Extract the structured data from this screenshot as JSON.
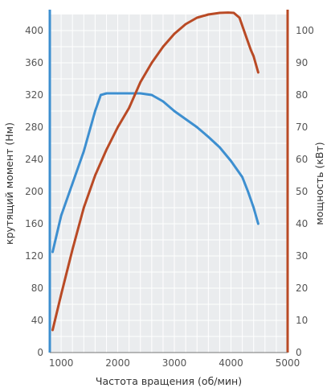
{
  "chart_data": {
    "type": "line",
    "xlabel": "Частота вращения (об/мин)",
    "xlim": [
      800,
      5000
    ],
    "x_ticks": [
      1000,
      2000,
      3000,
      4000,
      5000
    ],
    "left_axis": {
      "label": "крутящий момент (Нм)",
      "lim": [
        0,
        420
      ],
      "ticks": [
        0,
        40,
        80,
        120,
        160,
        200,
        240,
        280,
        320,
        360,
        400
      ],
      "color": "#3d8fd0"
    },
    "right_axis": {
      "label": "мощность (кВт)",
      "lim": [
        0,
        105
      ],
      "ticks": [
        0,
        10,
        20,
        30,
        40,
        50,
        60,
        70,
        80,
        90,
        100
      ],
      "color": "#b94a25"
    },
    "grid": true,
    "colors": {
      "plot_background": "#eaecee",
      "grid": "#ffffff",
      "torque": "#3d8fd0",
      "power": "#b94a25"
    },
    "series": [
      {
        "axis": "left",
        "color": "#3d8fd0",
        "x": [
          850,
          1000,
          1200,
          1400,
          1600,
          1700,
          1800,
          2000,
          2200,
          2400,
          2600,
          2800,
          3000,
          3200,
          3400,
          3600,
          3800,
          4000,
          4200,
          4300,
          4400,
          4480
        ],
        "y": [
          125,
          170,
          210,
          250,
          300,
          320,
          322,
          322,
          322,
          322,
          320,
          312,
          300,
          290,
          280,
          268,
          255,
          238,
          218,
          200,
          180,
          160
        ]
      },
      {
        "axis": "right",
        "color": "#b94a25",
        "x": [
          850,
          1000,
          1200,
          1400,
          1600,
          1800,
          2000,
          2200,
          2400,
          2600,
          2800,
          3000,
          3200,
          3400,
          3600,
          3800,
          3950,
          4050,
          4150,
          4250,
          4350,
          4400,
          4480
        ],
        "y": [
          7,
          18,
          32,
          45,
          55,
          63,
          70,
          76,
          84,
          90,
          95,
          99,
          102,
          104,
          105,
          105.5,
          105.6,
          105.5,
          104,
          99,
          94,
          92,
          87
        ]
      }
    ]
  }
}
